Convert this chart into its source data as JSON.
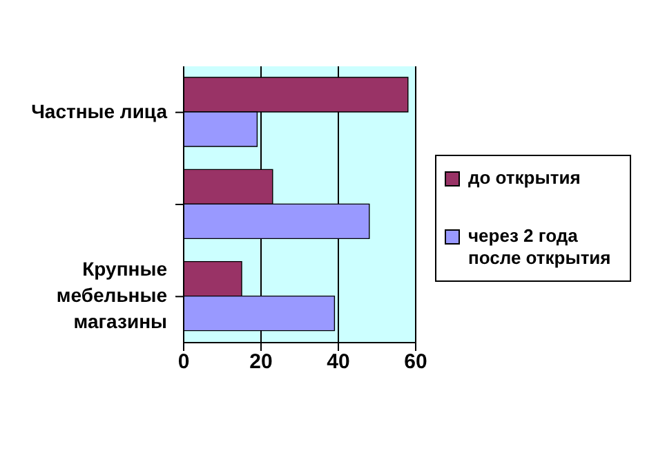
{
  "chart_data": {
    "type": "bar",
    "orientation": "horizontal",
    "categories": [
      "Частные лица",
      null,
      "Крупные мебельные магазины"
    ],
    "series": [
      {
        "name": "до открытия",
        "color": "#993366",
        "values": [
          58,
          23,
          15
        ]
      },
      {
        "name": "через 2 года после открытия",
        "color": "#9999ff",
        "values": [
          19,
          48,
          39
        ]
      }
    ],
    "xlim": [
      0,
      60
    ],
    "xticks": [
      0,
      20,
      40,
      60
    ],
    "grid": "x",
    "legend": "right"
  }
}
